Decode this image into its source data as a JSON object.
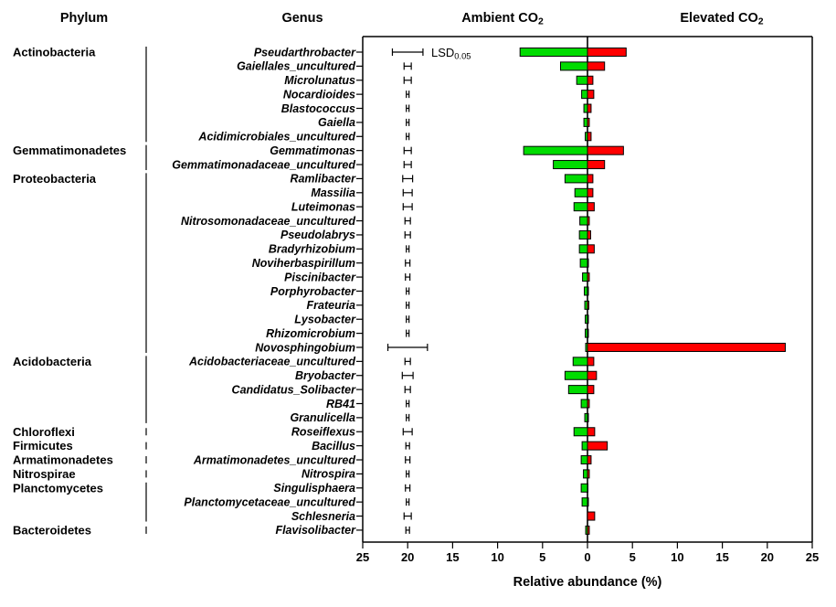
{
  "headers": {
    "phylum": "Phylum",
    "genus": "Genus",
    "ambient": {
      "text": "Ambient CO",
      "sub": "2"
    },
    "elevated": {
      "text": "Elevated CO",
      "sub": "2"
    }
  },
  "lsd_legend": {
    "text": "LSD",
    "sub": "0.05"
  },
  "chart_data": {
    "type": "bar",
    "orientation": "horizontal-diverging",
    "xlabel": "Relative abundance (%)",
    "axis": {
      "tick_labels": [
        "25",
        "20",
        "15",
        "10",
        "5",
        "0",
        "5",
        "10",
        "15",
        "20",
        "25"
      ],
      "tick_step": 5,
      "max": 25,
      "error_bar_center_pct": 20
    },
    "series_names": {
      "left": "Ambient CO2",
      "right": "Elevated CO2"
    },
    "colors": {
      "ambient": "#00dc00",
      "elevated": "#ff0000",
      "outline": "#000000"
    },
    "phyla": [
      {
        "name": "Actinobacteria",
        "from": 0,
        "to": 6
      },
      {
        "name": "Gemmatimonadetes",
        "from": 7,
        "to": 8
      },
      {
        "name": "Proteobacteria",
        "from": 9,
        "to": 21
      },
      {
        "name": "Acidobacteria",
        "from": 22,
        "to": 26
      },
      {
        "name": "Chloroflexi",
        "from": 27,
        "to": 27
      },
      {
        "name": "Firmicutes",
        "from": 28,
        "to": 28
      },
      {
        "name": "Armatimonadetes",
        "from": 29,
        "to": 29
      },
      {
        "name": "Nitrospirae",
        "from": 30,
        "to": 30
      },
      {
        "name": "Planctomycetes",
        "from": 31,
        "to": 33
      },
      {
        "name": "Bacteroidetes",
        "from": 34,
        "to": 34
      }
    ],
    "rows": [
      {
        "genus": "Pseudarthrobacter",
        "ambient": 7.5,
        "elevated": 4.3,
        "lsd": 1.7
      },
      {
        "genus": "Gaiellales_uncultured",
        "ambient": 3.0,
        "elevated": 1.9,
        "lsd": 0.4
      },
      {
        "genus": "Microlunatus",
        "ambient": 1.2,
        "elevated": 0.6,
        "lsd": 0.4
      },
      {
        "genus": "Nocardioides",
        "ambient": 0.65,
        "elevated": 0.7,
        "lsd": 0.15
      },
      {
        "genus": "Blastococcus",
        "ambient": 0.4,
        "elevated": 0.4,
        "lsd": 0.15
      },
      {
        "genus": "Gaiella",
        "ambient": 0.4,
        "elevated": 0.2,
        "lsd": 0.15
      },
      {
        "genus": "Acidimicrobiales_uncultured",
        "ambient": 0.25,
        "elevated": 0.4,
        "lsd": 0.15
      },
      {
        "genus": "Gemmatimonas",
        "ambient": 7.1,
        "elevated": 4.0,
        "lsd": 0.4
      },
      {
        "genus": "Gemmatimonadaceae_uncultured",
        "ambient": 3.8,
        "elevated": 1.9,
        "lsd": 0.4
      },
      {
        "genus": "Ramlibacter",
        "ambient": 2.5,
        "elevated": 0.6,
        "lsd": 0.55
      },
      {
        "genus": "Massilia",
        "ambient": 1.4,
        "elevated": 0.6,
        "lsd": 0.5
      },
      {
        "genus": "Luteimonas",
        "ambient": 1.5,
        "elevated": 0.75,
        "lsd": 0.5
      },
      {
        "genus": "Nitrosomonadaceae_uncultured",
        "ambient": 0.85,
        "elevated": 0.2,
        "lsd": 0.3
      },
      {
        "genus": "Pseudolabrys",
        "ambient": 0.9,
        "elevated": 0.35,
        "lsd": 0.3
      },
      {
        "genus": "Bradyrhizobium",
        "ambient": 0.9,
        "elevated": 0.75,
        "lsd": 0.15
      },
      {
        "genus": "Noviherbaspirillum",
        "ambient": 0.8,
        "elevated": 0.1,
        "lsd": 0.25
      },
      {
        "genus": "Piscinibacter",
        "ambient": 0.55,
        "elevated": 0.2,
        "lsd": 0.25
      },
      {
        "genus": "Porphyrobacter",
        "ambient": 0.35,
        "elevated": 0.1,
        "lsd": 0.15
      },
      {
        "genus": "Frateuria",
        "ambient": 0.3,
        "elevated": 0.15,
        "lsd": 0.15
      },
      {
        "genus": "Lysobacter",
        "ambient": 0.25,
        "elevated": 0.1,
        "lsd": 0.15
      },
      {
        "genus": "Rhizomicrobium",
        "ambient": 0.25,
        "elevated": 0.1,
        "lsd": 0.15
      },
      {
        "genus": "Novosphingobium",
        "ambient": 0.2,
        "elevated": 22.0,
        "lsd": 2.2
      },
      {
        "genus": "Acidobacteriaceae_uncultured",
        "ambient": 1.6,
        "elevated": 0.7,
        "lsd": 0.3
      },
      {
        "genus": "Bryobacter",
        "ambient": 2.5,
        "elevated": 1.0,
        "lsd": 0.6
      },
      {
        "genus": "Candidatus_Solibacter",
        "ambient": 2.1,
        "elevated": 0.7,
        "lsd": 0.3
      },
      {
        "genus": "RB41",
        "ambient": 0.7,
        "elevated": 0.2,
        "lsd": 0.15
      },
      {
        "genus": "Granulicella",
        "ambient": 0.3,
        "elevated": 0.1,
        "lsd": 0.15
      },
      {
        "genus": "Roseiflexus",
        "ambient": 1.5,
        "elevated": 0.8,
        "lsd": 0.5
      },
      {
        "genus": "Bacillus",
        "ambient": 0.6,
        "elevated": 2.2,
        "lsd": 0.2
      },
      {
        "genus": "Armatimonadetes_uncultured",
        "ambient": 0.7,
        "elevated": 0.4,
        "lsd": 0.25
      },
      {
        "genus": "Nitrospira",
        "ambient": 0.45,
        "elevated": 0.2,
        "lsd": 0.15
      },
      {
        "genus": "Singulisphaera",
        "ambient": 0.7,
        "elevated": 0.05,
        "lsd": 0.25
      },
      {
        "genus": "Planctomycetaceae_uncultured",
        "ambient": 0.6,
        "elevated": 0.1,
        "lsd": 0.15
      },
      {
        "genus": "Schlesneria",
        "ambient": 0.0,
        "elevated": 0.8,
        "lsd": 0.4
      },
      {
        "genus": "Flavisolibacter",
        "ambient": 0.2,
        "elevated": 0.2,
        "lsd": 0.2
      }
    ]
  }
}
